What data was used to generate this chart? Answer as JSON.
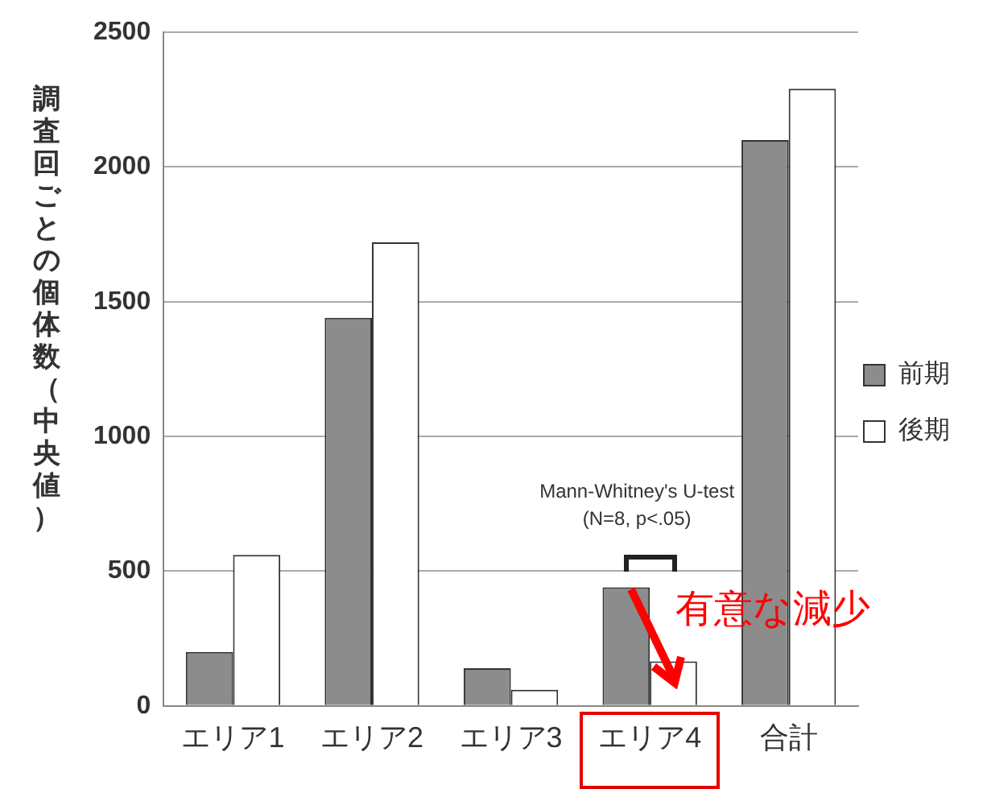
{
  "chart_data": {
    "type": "bar",
    "ylabel": "調査回ごとの個体数（中央値）",
    "categories": [
      "エリア1",
      "エリア2",
      "エリア3",
      "エリア4",
      "合計"
    ],
    "series": [
      {
        "name": "前期",
        "color": "#8c8c8c",
        "values": [
          200,
          1440,
          140,
          440,
          2100
        ]
      },
      {
        "name": "後期",
        "color": "#ffffff",
        "values": [
          560,
          1720,
          60,
          165,
          2290
        ]
      }
    ],
    "ylim": [
      0,
      2500
    ],
    "yticks": [
      0,
      500,
      1000,
      1500,
      2000,
      2500
    ],
    "grid": "y",
    "legend": "right",
    "annotations": [
      "Mann-Whitney's U-test",
      "(N=8, p<.05)",
      "有意な減少"
    ]
  }
}
